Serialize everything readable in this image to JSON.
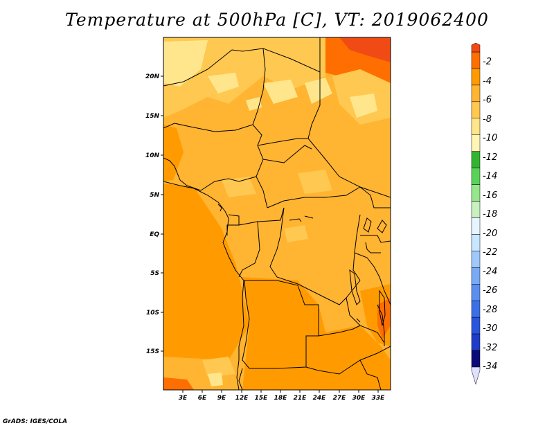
{
  "title": "Temperature at 500hPa [C], VT: 2019062400",
  "credit": "GrADS: IGES/COLA",
  "map": {
    "lat_labels": [
      "20N",
      "15N",
      "10N",
      "5N",
      "EQ",
      "5S",
      "10S",
      "15S"
    ],
    "lon_labels": [
      "3E",
      "6E",
      "9E",
      "12E",
      "15E",
      "18E",
      "21E",
      "24E",
      "27E",
      "30E",
      "33E"
    ]
  },
  "colorbar": {
    "labels": [
      "-2",
      "-4",
      "-6",
      "-8",
      "-10",
      "-12",
      "-14",
      "-16",
      "-18",
      "-20",
      "-22",
      "-24",
      "-26",
      "-28",
      "-30",
      "-32",
      "-34"
    ],
    "colors": [
      "#e0e0ff",
      "#0a0a78",
      "#1e3cc8",
      "#2855dc",
      "#3c70e6",
      "#5a8ff0",
      "#78aaf5",
      "#a0c8fa",
      "#c8e6ff",
      "#e6f5ff",
      "#c8f0c0",
      "#96e68c",
      "#5ad25a",
      "#32b432",
      "#fff5b4",
      "#ffe68c",
      "#ffc850",
      "#ffb432",
      "#ff9b00",
      "#ff6e00",
      "#f04b14"
    ]
  }
}
